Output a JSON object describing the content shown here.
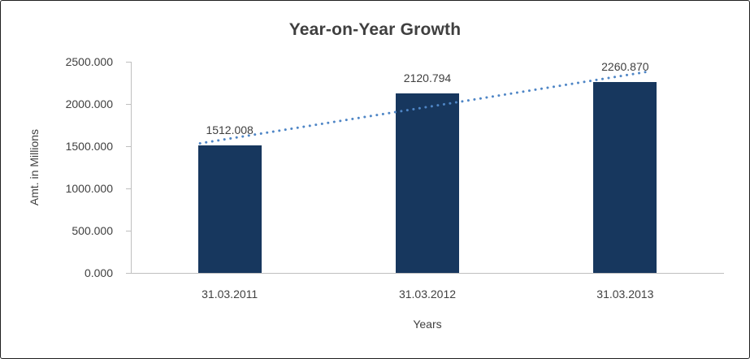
{
  "chart_data": {
    "type": "bar",
    "title": "Year-on-Year Growth",
    "categories": [
      "31.03.2011",
      "31.03.2012",
      "31.03.2013"
    ],
    "values": [
      1512.008,
      2120.794,
      2260.87
    ],
    "data_labels": [
      "1512.008",
      "2120.794",
      "2260.870"
    ],
    "xlabel": "Years",
    "ylabel": "Amt. in Millions",
    "ylim": [
      0,
      2500
    ],
    "ytick_step": 500,
    "ytick_labels": [
      "0.000",
      "500.000",
      "1000.000",
      "1500.000",
      "2000.000",
      "2500.000"
    ],
    "bar_color": "#17375E",
    "axis_color": "#bfbfbf",
    "text_color": "#404040",
    "trendline": {
      "type": "linear",
      "color": "#4f86c6",
      "style": "dotted"
    },
    "grid": false,
    "legend": false
  }
}
